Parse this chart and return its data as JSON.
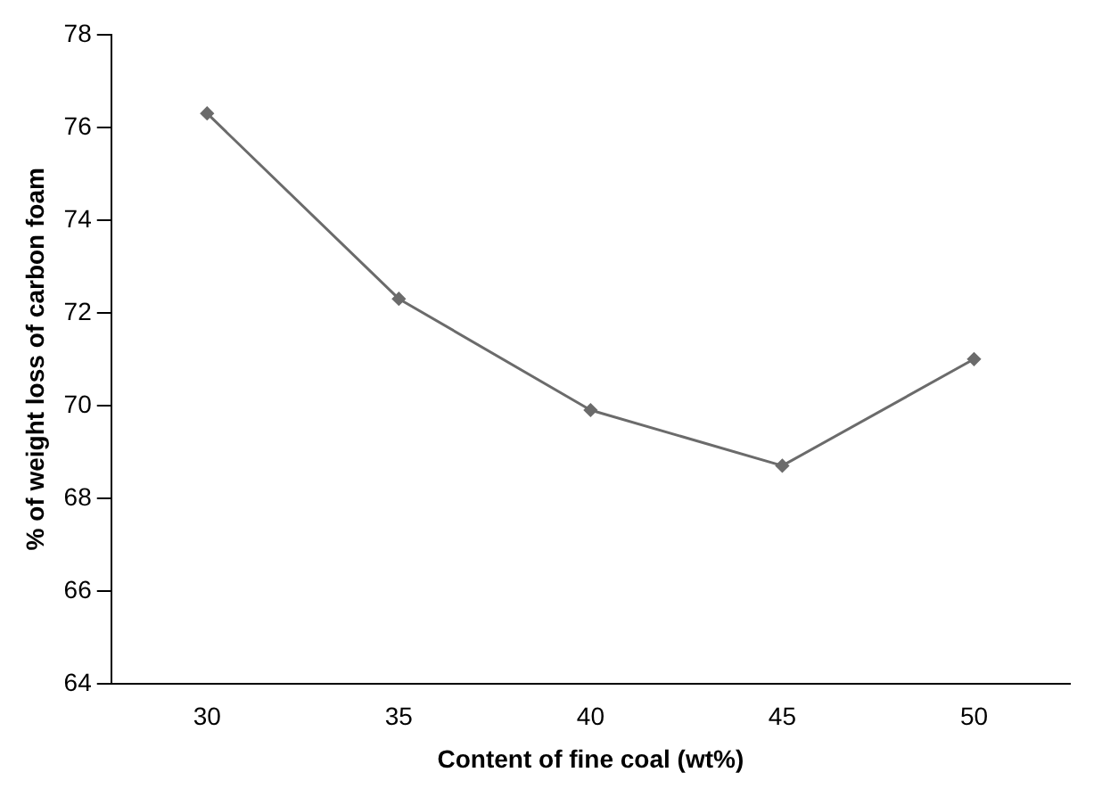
{
  "chart_data": {
    "type": "line",
    "xlabel": "Content of fine coal (wt%)",
    "ylabel": "% of weight loss of carbon foam",
    "categories": [
      "30",
      "35",
      "40",
      "45",
      "50"
    ],
    "series": [
      {
        "color": "#6b6b6b",
        "values": [
          76.3,
          72.3,
          69.9,
          68.7,
          71.0
        ]
      }
    ],
    "ylim": [
      64,
      78
    ],
    "yticks": [
      64,
      66,
      68,
      70,
      72,
      74,
      76,
      78
    ],
    "grid": false,
    "legend": false,
    "marker": "diamond",
    "line_style": "solid"
  }
}
